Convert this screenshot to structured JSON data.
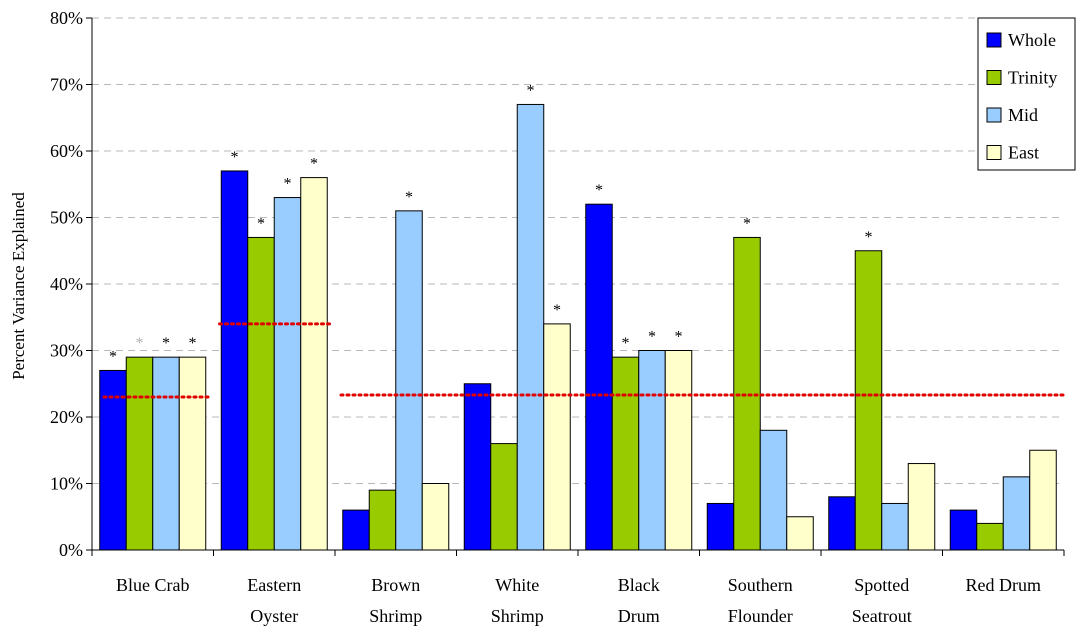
{
  "chart_data": {
    "type": "bar",
    "ylabel": "Percent Variance Explained",
    "xlabel": "",
    "ylim": [
      0,
      80
    ],
    "y_ticks": [
      "0%",
      "10%",
      "20%",
      "30%",
      "40%",
      "50%",
      "60%",
      "70%",
      "80%"
    ],
    "grid": "horizontal dashed",
    "legend_position": "top-right",
    "categories": [
      [
        "Blue Crab"
      ],
      [
        "Eastern",
        "Oyster"
      ],
      [
        "Brown",
        "Shrimp"
      ],
      [
        "White",
        "Shrimp"
      ],
      [
        "Black",
        "Drum"
      ],
      [
        "Southern",
        "Flounder"
      ],
      [
        "Spotted",
        "Seatrout"
      ],
      [
        "Red Drum"
      ]
    ],
    "series": [
      {
        "name": "Whole",
        "color": "#0000ff",
        "values": [
          27,
          57,
          6,
          25,
          52,
          7,
          8,
          6
        ]
      },
      {
        "name": "Trinity",
        "color": "#99cc00",
        "values": [
          29,
          47,
          9,
          16,
          29,
          47,
          45,
          4
        ]
      },
      {
        "name": "Mid",
        "color": "#99ccff",
        "values": [
          29,
          53,
          51,
          67,
          30,
          18,
          7,
          11
        ]
      },
      {
        "name": "East",
        "color": "#ffffcc",
        "values": [
          29,
          56,
          10,
          34,
          30,
          5,
          13,
          15
        ]
      }
    ],
    "significance": [
      [
        "*",
        "*",
        "*",
        "*"
      ],
      [
        "*",
        "*",
        "*",
        "*"
      ],
      [
        "",
        "",
        "*",
        ""
      ],
      [
        "",
        "",
        "*",
        "*"
      ],
      [
        "*",
        "*",
        "*",
        "*"
      ],
      [
        "",
        "*",
        "",
        ""
      ],
      [
        "",
        "*",
        "",
        ""
      ],
      [
        "",
        "",
        "",
        ""
      ]
    ],
    "significance_colors": [
      [
        "#000000",
        "#b0b0b0",
        "#000000",
        "#000000"
      ]
    ],
    "reference_lines": [
      {
        "color": "#e00000",
        "style": "dotted",
        "segments": [
          {
            "from_category": 0,
            "to_category": 0,
            "value": 23
          },
          {
            "from_category": 1,
            "to_category": 1,
            "value": 34
          },
          {
            "from_category": 2,
            "to_category": 7,
            "value": 23.3
          }
        ]
      }
    ]
  }
}
